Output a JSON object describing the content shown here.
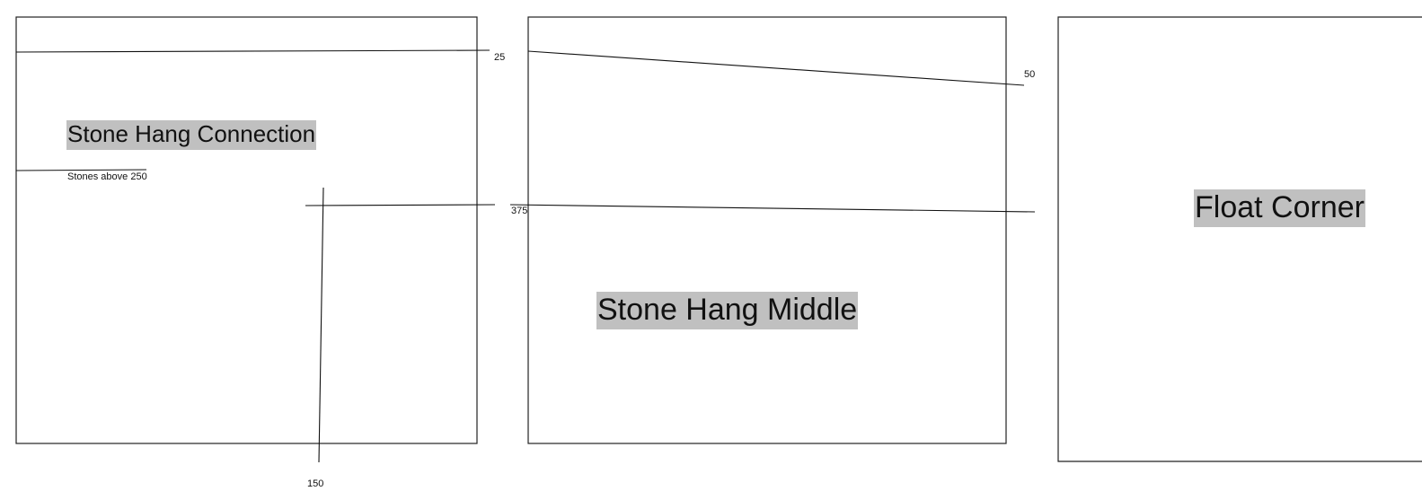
{
  "panels": [
    {
      "title": "Stone Hang Connection",
      "note": "Stones above 250",
      "dimensions": [
        "25",
        "150"
      ]
    },
    {
      "title": "Stone Hang Middle",
      "dimensions": [
        "50",
        "375"
      ]
    },
    {
      "title": "Float Corner"
    }
  ],
  "colors": {
    "label_background": "#c0c0c0",
    "line": "#111111"
  }
}
